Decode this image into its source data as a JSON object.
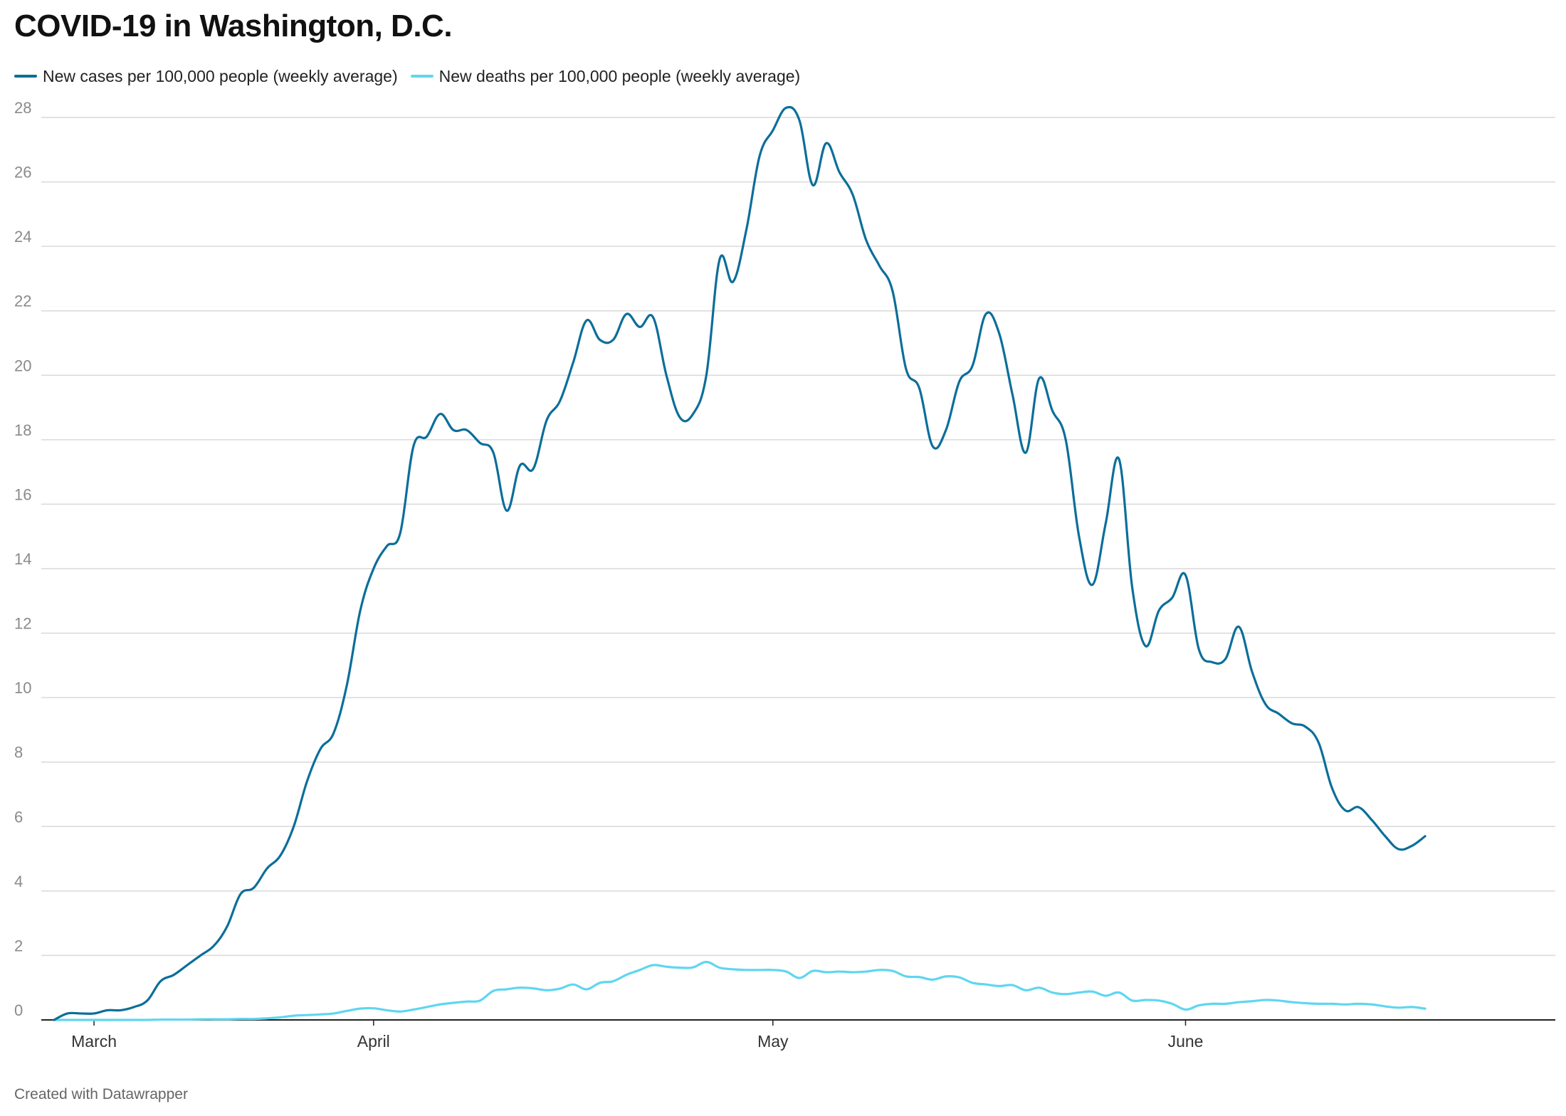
{
  "chart_data": {
    "type": "line",
    "title": "COVID-19 in Washington, D.C.",
    "footer": "Created with Datawrapper",
    "ylim": [
      0,
      28
    ],
    "yticks": [
      0,
      2,
      4,
      6,
      8,
      10,
      12,
      14,
      16,
      18,
      20,
      22,
      24,
      26,
      28
    ],
    "grid": true,
    "legend_position": "top-left",
    "x_start": "2020-03-08",
    "x_end": "2020-06-21",
    "x_ticks": [
      {
        "label": "March",
        "date": "2020-03-11"
      },
      {
        "label": "April",
        "date": "2020-04-01"
      },
      {
        "label": "May",
        "date": "2020-05-01"
      },
      {
        "label": "June",
        "date": "2020-06-01"
      }
    ],
    "series": [
      {
        "name": "New cases per 100,000 people (weekly average)",
        "color": "#0b6e9a",
        "points": [
          [
            "2020-03-08",
            0.0
          ],
          [
            "2020-03-09",
            0.2
          ],
          [
            "2020-03-10",
            0.2
          ],
          [
            "2020-03-11",
            0.2
          ],
          [
            "2020-03-12",
            0.3
          ],
          [
            "2020-03-13",
            0.3
          ],
          [
            "2020-03-14",
            0.4
          ],
          [
            "2020-03-15",
            0.6
          ],
          [
            "2020-03-16",
            1.2
          ],
          [
            "2020-03-17",
            1.4
          ],
          [
            "2020-03-18",
            1.7
          ],
          [
            "2020-03-19",
            2.0
          ],
          [
            "2020-03-20",
            2.3
          ],
          [
            "2020-03-21",
            2.9
          ],
          [
            "2020-03-22",
            3.9
          ],
          [
            "2020-03-23",
            4.1
          ],
          [
            "2020-03-24",
            4.7
          ],
          [
            "2020-03-25",
            5.1
          ],
          [
            "2020-03-26",
            6.0
          ],
          [
            "2020-03-27",
            7.4
          ],
          [
            "2020-03-28",
            8.4
          ],
          [
            "2020-03-29",
            8.9
          ],
          [
            "2020-03-30",
            10.4
          ],
          [
            "2020-03-31",
            12.7
          ],
          [
            "2020-04-01",
            14.0
          ],
          [
            "2020-04-02",
            14.7
          ],
          [
            "2020-04-03",
            15.1
          ],
          [
            "2020-04-04",
            17.8
          ],
          [
            "2020-04-05",
            18.1
          ],
          [
            "2020-04-06",
            18.8
          ],
          [
            "2020-04-07",
            18.3
          ],
          [
            "2020-04-08",
            18.3
          ],
          [
            "2020-04-09",
            17.9
          ],
          [
            "2020-04-10",
            17.6
          ],
          [
            "2020-04-11",
            15.8
          ],
          [
            "2020-04-12",
            17.2
          ],
          [
            "2020-04-13",
            17.1
          ],
          [
            "2020-04-14",
            18.6
          ],
          [
            "2020-04-15",
            19.2
          ],
          [
            "2020-04-16",
            20.4
          ],
          [
            "2020-04-17",
            21.7
          ],
          [
            "2020-04-18",
            21.1
          ],
          [
            "2020-04-19",
            21.1
          ],
          [
            "2020-04-20",
            21.9
          ],
          [
            "2020-04-21",
            21.5
          ],
          [
            "2020-04-22",
            21.8
          ],
          [
            "2020-04-23",
            20.0
          ],
          [
            "2020-04-24",
            18.7
          ],
          [
            "2020-04-25",
            18.8
          ],
          [
            "2020-04-26",
            20.0
          ],
          [
            "2020-04-27",
            23.6
          ],
          [
            "2020-04-28",
            22.9
          ],
          [
            "2020-04-29",
            24.5
          ],
          [
            "2020-04-30",
            26.8
          ],
          [
            "2020-05-01",
            27.6
          ],
          [
            "2020-05-02",
            28.3
          ],
          [
            "2020-05-03",
            27.9
          ],
          [
            "2020-05-04",
            25.9
          ],
          [
            "2020-05-05",
            27.2
          ],
          [
            "2020-05-06",
            26.3
          ],
          [
            "2020-05-07",
            25.6
          ],
          [
            "2020-05-08",
            24.2
          ],
          [
            "2020-05-09",
            23.4
          ],
          [
            "2020-05-10",
            22.6
          ],
          [
            "2020-05-11",
            20.2
          ],
          [
            "2020-05-12",
            19.6
          ],
          [
            "2020-05-13",
            17.8
          ],
          [
            "2020-05-14",
            18.3
          ],
          [
            "2020-05-15",
            19.8
          ],
          [
            "2020-05-16",
            20.3
          ],
          [
            "2020-05-17",
            21.9
          ],
          [
            "2020-05-18",
            21.3
          ],
          [
            "2020-05-19",
            19.4
          ],
          [
            "2020-05-20",
            17.6
          ],
          [
            "2020-05-21",
            19.9
          ],
          [
            "2020-05-22",
            18.9
          ],
          [
            "2020-05-23",
            18.0
          ],
          [
            "2020-05-24",
            15.0
          ],
          [
            "2020-05-25",
            13.5
          ],
          [
            "2020-05-26",
            15.4
          ],
          [
            "2020-05-27",
            17.4
          ],
          [
            "2020-05-28",
            13.4
          ],
          [
            "2020-05-29",
            11.6
          ],
          [
            "2020-05-30",
            12.7
          ],
          [
            "2020-05-31",
            13.1
          ],
          [
            "2020-06-01",
            13.8
          ],
          [
            "2020-06-02",
            11.5
          ],
          [
            "2020-06-03",
            11.1
          ],
          [
            "2020-06-04",
            11.2
          ],
          [
            "2020-06-05",
            12.2
          ],
          [
            "2020-06-06",
            10.8
          ],
          [
            "2020-06-07",
            9.8
          ],
          [
            "2020-06-08",
            9.5
          ],
          [
            "2020-06-09",
            9.2
          ],
          [
            "2020-06-10",
            9.1
          ],
          [
            "2020-06-11",
            8.6
          ],
          [
            "2020-06-12",
            7.2
          ],
          [
            "2020-06-13",
            6.5
          ],
          [
            "2020-06-14",
            6.6
          ],
          [
            "2020-06-15",
            6.2
          ],
          [
            "2020-06-16",
            5.7
          ],
          [
            "2020-06-17",
            5.3
          ],
          [
            "2020-06-18",
            5.4
          ],
          [
            "2020-06-19",
            5.7
          ]
        ]
      },
      {
        "name": "New deaths per 100,000 people (weekly average)",
        "color": "#5fd6f0",
        "points": [
          [
            "2020-03-08",
            0.0
          ],
          [
            "2020-03-09",
            0.0
          ],
          [
            "2020-03-10",
            0.0
          ],
          [
            "2020-03-11",
            0.0
          ],
          [
            "2020-03-12",
            0.0
          ],
          [
            "2020-03-13",
            0.0
          ],
          [
            "2020-03-14",
            0.0
          ],
          [
            "2020-03-15",
            0.0
          ],
          [
            "2020-03-16",
            0.01
          ],
          [
            "2020-03-17",
            0.01
          ],
          [
            "2020-03-18",
            0.01
          ],
          [
            "2020-03-19",
            0.02
          ],
          [
            "2020-03-20",
            0.02
          ],
          [
            "2020-03-21",
            0.02
          ],
          [
            "2020-03-22",
            0.03
          ],
          [
            "2020-03-23",
            0.03
          ],
          [
            "2020-03-24",
            0.05
          ],
          [
            "2020-03-25",
            0.08
          ],
          [
            "2020-03-26",
            0.13
          ],
          [
            "2020-03-27",
            0.15
          ],
          [
            "2020-03-28",
            0.17
          ],
          [
            "2020-03-29",
            0.2
          ],
          [
            "2020-03-30",
            0.28
          ],
          [
            "2020-03-31",
            0.35
          ],
          [
            "2020-04-01",
            0.36
          ],
          [
            "2020-04-02",
            0.3
          ],
          [
            "2020-04-03",
            0.26
          ],
          [
            "2020-04-04",
            0.32
          ],
          [
            "2020-04-05",
            0.4
          ],
          [
            "2020-04-06",
            0.48
          ],
          [
            "2020-04-07",
            0.53
          ],
          [
            "2020-04-08",
            0.57
          ],
          [
            "2020-04-09",
            0.6
          ],
          [
            "2020-04-10",
            0.9
          ],
          [
            "2020-04-11",
            0.95
          ],
          [
            "2020-04-12",
            1.0
          ],
          [
            "2020-04-13",
            0.98
          ],
          [
            "2020-04-14",
            0.92
          ],
          [
            "2020-04-15",
            0.97
          ],
          [
            "2020-04-16",
            1.1
          ],
          [
            "2020-04-17",
            0.95
          ],
          [
            "2020-04-18",
            1.15
          ],
          [
            "2020-04-19",
            1.2
          ],
          [
            "2020-04-20",
            1.4
          ],
          [
            "2020-04-21",
            1.55
          ],
          [
            "2020-04-22",
            1.7
          ],
          [
            "2020-04-23",
            1.65
          ],
          [
            "2020-04-24",
            1.62
          ],
          [
            "2020-04-25",
            1.63
          ],
          [
            "2020-04-26",
            1.8
          ],
          [
            "2020-04-27",
            1.62
          ],
          [
            "2020-04-28",
            1.57
          ],
          [
            "2020-04-29",
            1.55
          ],
          [
            "2020-04-30",
            1.55
          ],
          [
            "2020-05-01",
            1.55
          ],
          [
            "2020-05-02",
            1.5
          ],
          [
            "2020-05-03",
            1.3
          ],
          [
            "2020-05-04",
            1.52
          ],
          [
            "2020-05-05",
            1.48
          ],
          [
            "2020-05-06",
            1.5
          ],
          [
            "2020-05-07",
            1.48
          ],
          [
            "2020-05-08",
            1.5
          ],
          [
            "2020-05-09",
            1.55
          ],
          [
            "2020-05-10",
            1.52
          ],
          [
            "2020-05-11",
            1.35
          ],
          [
            "2020-05-12",
            1.33
          ],
          [
            "2020-05-13",
            1.25
          ],
          [
            "2020-05-14",
            1.35
          ],
          [
            "2020-05-15",
            1.32
          ],
          [
            "2020-05-16",
            1.15
          ],
          [
            "2020-05-17",
            1.1
          ],
          [
            "2020-05-18",
            1.05
          ],
          [
            "2020-05-19",
            1.08
          ],
          [
            "2020-05-20",
            0.92
          ],
          [
            "2020-05-21",
            1.0
          ],
          [
            "2020-05-22",
            0.85
          ],
          [
            "2020-05-23",
            0.8
          ],
          [
            "2020-05-24",
            0.85
          ],
          [
            "2020-05-25",
            0.88
          ],
          [
            "2020-05-26",
            0.75
          ],
          [
            "2020-05-27",
            0.85
          ],
          [
            "2020-05-28",
            0.6
          ],
          [
            "2020-05-29",
            0.62
          ],
          [
            "2020-05-30",
            0.6
          ],
          [
            "2020-05-31",
            0.5
          ],
          [
            "2020-06-01",
            0.32
          ],
          [
            "2020-06-02",
            0.45
          ],
          [
            "2020-06-03",
            0.5
          ],
          [
            "2020-06-04",
            0.5
          ],
          [
            "2020-06-05",
            0.55
          ],
          [
            "2020-06-06",
            0.58
          ],
          [
            "2020-06-07",
            0.62
          ],
          [
            "2020-06-08",
            0.6
          ],
          [
            "2020-06-09",
            0.55
          ],
          [
            "2020-06-10",
            0.52
          ],
          [
            "2020-06-11",
            0.5
          ],
          [
            "2020-06-12",
            0.5
          ],
          [
            "2020-06-13",
            0.48
          ],
          [
            "2020-06-14",
            0.5
          ],
          [
            "2020-06-15",
            0.48
          ],
          [
            "2020-06-16",
            0.42
          ],
          [
            "2020-06-17",
            0.38
          ],
          [
            "2020-06-18",
            0.4
          ],
          [
            "2020-06-19",
            0.35
          ]
        ]
      }
    ]
  }
}
